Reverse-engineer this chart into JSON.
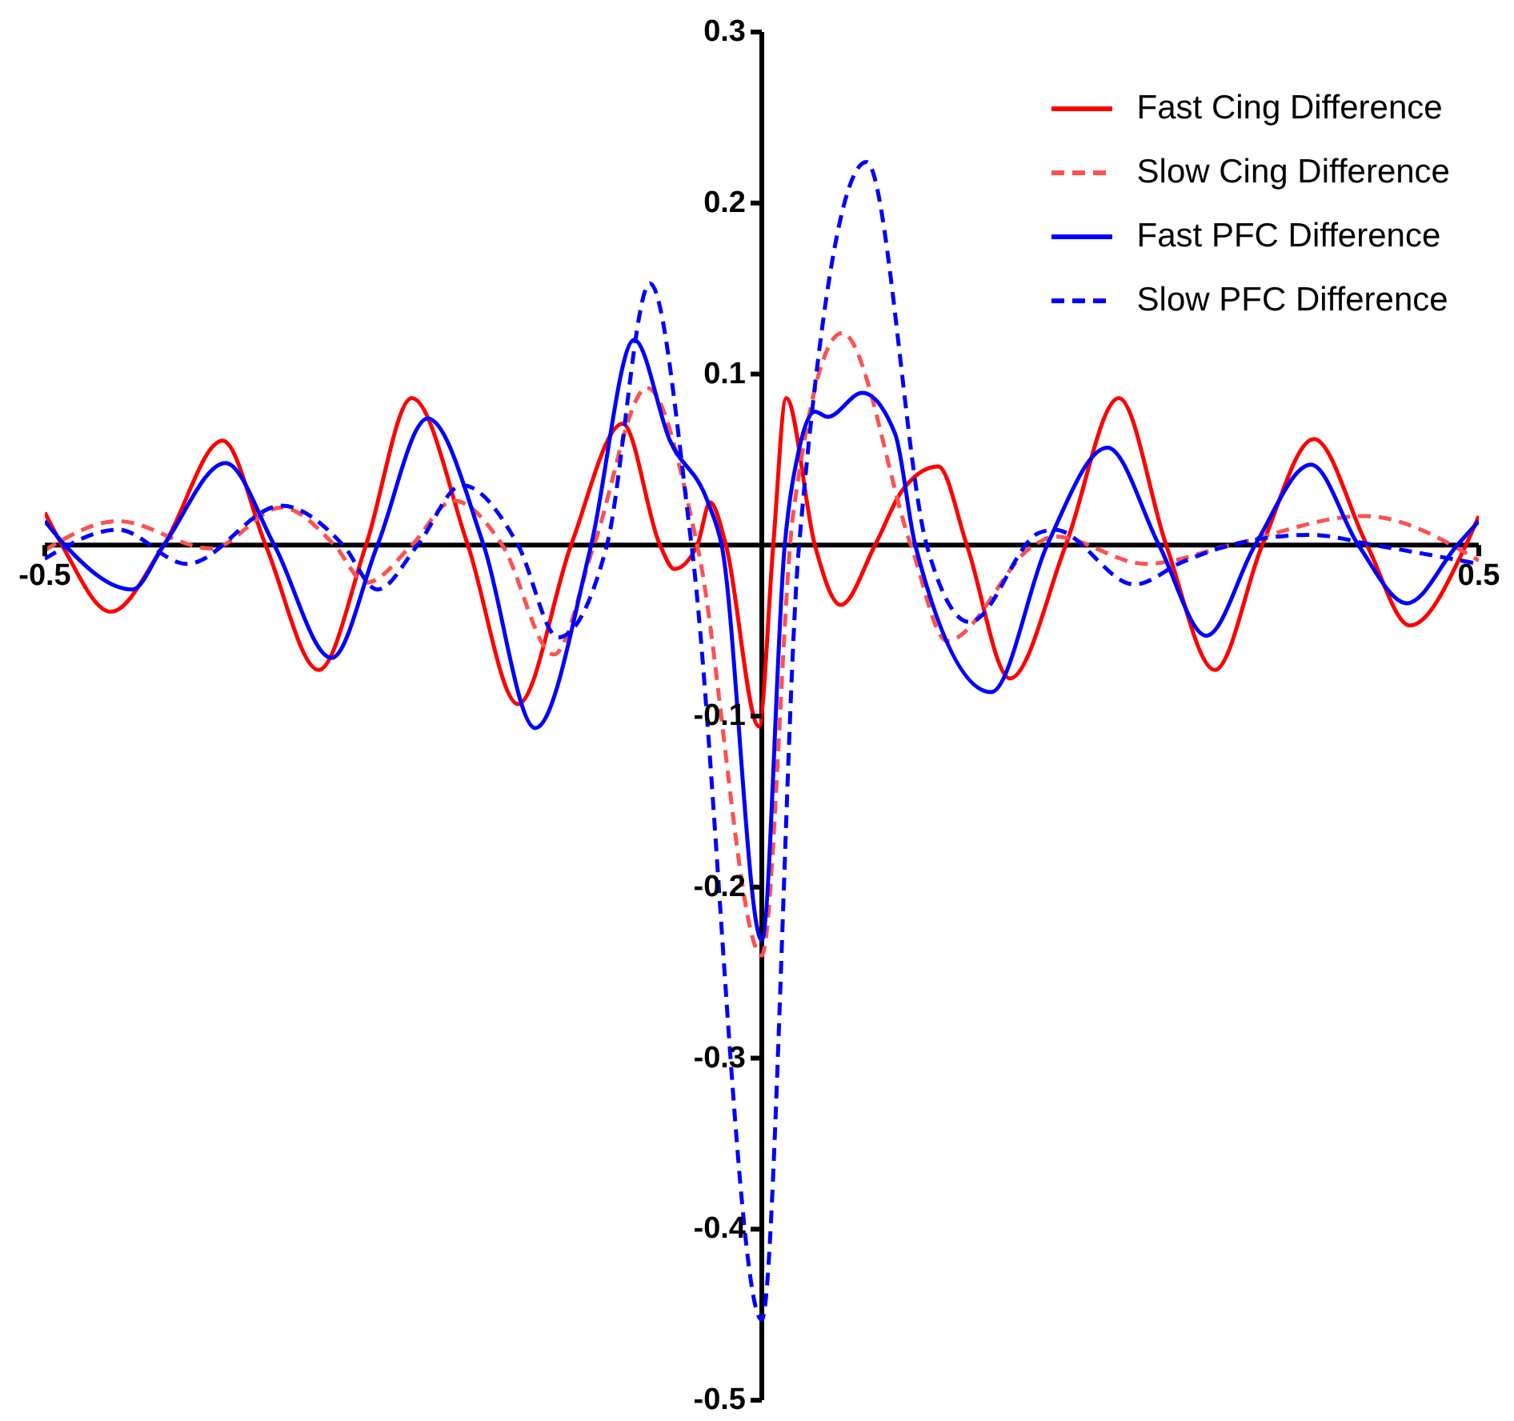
{
  "chart_data": {
    "type": "line",
    "xlim": [
      -0.5,
      0.5
    ],
    "xticks": [
      -0.5,
      0.5
    ],
    "ylim": [
      -0.5,
      0.3
    ],
    "yticks": [
      -0.5,
      -0.4,
      -0.3,
      -0.2,
      -0.1,
      0.1,
      0.2,
      0.3
    ],
    "grid": false,
    "legend": "top right",
    "marker": "none",
    "series": [
      {
        "name": "Fast Cing Difference",
        "color": "#ff0000",
        "line_style": "solid",
        "x": [
          -0.5,
          -0.488,
          -0.454,
          -0.417,
          -0.376,
          -0.346,
          -0.309,
          -0.276,
          -0.244,
          -0.205,
          -0.17,
          -0.133,
          -0.097,
          -0.071,
          -0.061,
          -0.045,
          -0.036,
          -0.025,
          -0.002,
          0.008,
          0.017,
          0.037,
          0.055,
          0.079,
          0.098,
          0.123,
          0.143,
          0.173,
          0.212,
          0.249,
          0.282,
          0.316,
          0.349,
          0.385,
          0.422,
          0.452,
          0.491,
          0.5
        ],
        "values": [
          0.019,
          0,
          -0.039,
          0,
          0.061,
          0,
          -0.073,
          0,
          0.086,
          0,
          -0.093,
          0,
          0.071,
          0,
          -0.014,
          0,
          0.025,
          0,
          -0.106,
          0,
          0.086,
          0,
          -0.035,
          0,
          0.032,
          0.046,
          0,
          -0.078,
          0,
          0.086,
          0,
          -0.073,
          0,
          0.062,
          0,
          -0.047,
          0,
          0.017
        ]
      },
      {
        "name": "Slow Cing Difference",
        "color": "#ff5050",
        "line_style": "dashed",
        "x": [
          -0.5,
          -0.449,
          -0.384,
          -0.335,
          -0.298,
          -0.276,
          -0.244,
          -0.215,
          -0.181,
          -0.145,
          -0.117,
          -0.08,
          -0.045,
          0,
          0.022,
          0.056,
          0.104,
          0.129,
          0.19,
          0.204,
          0.268,
          0.327,
          0.42,
          0.5
        ],
        "values": [
          -0.003,
          0.014,
          -0.002,
          0.022,
          0,
          -0.022,
          0,
          0.026,
          0,
          -0.064,
          0,
          0.092,
          0,
          -0.24,
          0.019,
          0.124,
          0,
          -0.056,
          0,
          0.005,
          -0.011,
          0,
          0.017,
          -0.009
        ]
      },
      {
        "name": "Fast PFC Difference",
        "color": "#0000ff",
        "line_style": "solid",
        "x": [
          -0.5,
          -0.486,
          -0.439,
          -0.417,
          -0.374,
          -0.34,
          -0.3,
          -0.268,
          -0.233,
          -0.194,
          -0.158,
          -0.119,
          -0.089,
          -0.064,
          -0.038,
          -0.028,
          0,
          0.016,
          0.026,
          0.037,
          0.046,
          0.07,
          0.093,
          0.107,
          0.16,
          0.199,
          0.241,
          0.277,
          0.31,
          0.344,
          0.383,
          0.416,
          0.45,
          0.485,
          0.5
        ],
        "values": [
          0.014,
          0,
          -0.026,
          0,
          0.048,
          0,
          -0.066,
          0,
          0.074,
          0,
          -0.107,
          0,
          0.12,
          0.061,
          0.026,
          0,
          -0.231,
          0,
          0.056,
          0.078,
          0.075,
          0.089,
          0.065,
          0,
          -0.086,
          0,
          0.057,
          0,
          -0.053,
          0,
          0.047,
          0,
          -0.034,
          0,
          0.014
        ]
      },
      {
        "name": "Slow PFC Difference",
        "color": "#0000ff",
        "line_style": "dashed",
        "x": [
          -0.5,
          -0.449,
          -0.401,
          -0.335,
          -0.292,
          -0.268,
          -0.24,
          -0.209,
          -0.17,
          -0.142,
          -0.108,
          -0.078,
          -0.049,
          0,
          0.026,
          0.073,
          0.115,
          0.145,
          0.193,
          0.204,
          0.26,
          0.293,
          0.327,
          0.383,
          0.427,
          0.5
        ],
        "values": [
          -0.008,
          0.009,
          -0.011,
          0.023,
          0,
          -0.026,
          0,
          0.035,
          0,
          -0.054,
          0,
          0.153,
          0,
          -0.453,
          0,
          0.224,
          0,
          -0.045,
          0.007,
          0.009,
          -0.023,
          -0.01,
          0,
          0.006,
          0,
          -0.011
        ]
      }
    ]
  }
}
